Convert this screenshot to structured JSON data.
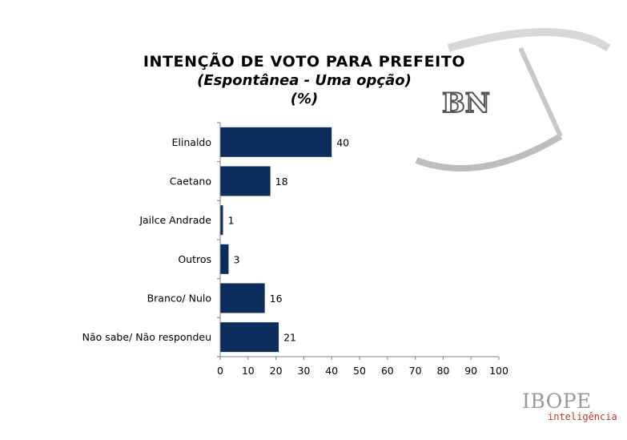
{
  "title": {
    "line1": "INTENÇÃO DE VOTO PARA PREFEITO",
    "line2": "(Espontânea - Uma opção)",
    "line3": "(%)"
  },
  "logo": {
    "text": "BN",
    "icon": "bn-swoosh-logo"
  },
  "footer": {
    "brand": "IBOPE",
    "sub": "inteligência"
  },
  "colors": {
    "bar": "#0d2d5c",
    "axis": "#808080"
  },
  "chart_data": {
    "type": "bar",
    "orientation": "horizontal",
    "categories": [
      "Elinaldo",
      "Caetano",
      "Jailce Andrade",
      "Outros",
      "Branco/ Nulo",
      "Não sabe/ Não respondeu"
    ],
    "values": [
      40,
      18,
      1,
      3,
      16,
      21
    ],
    "xlim": [
      0,
      100
    ],
    "xticks": [
      0,
      10,
      20,
      30,
      40,
      50,
      60,
      70,
      80,
      90,
      100
    ],
    "title": "INTENÇÃO DE VOTO PARA PREFEITO",
    "subtitle": "(Espontânea - Uma opção)",
    "unit": "(%)",
    "grid": false,
    "data_labels": true
  }
}
